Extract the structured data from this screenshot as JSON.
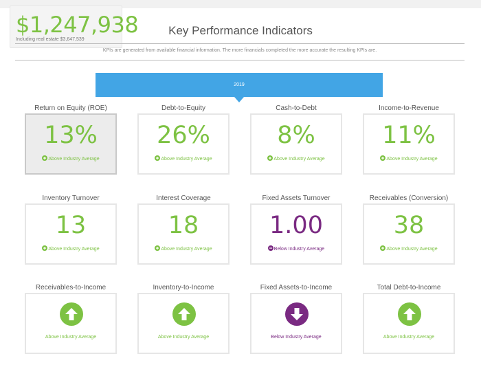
{
  "valuation": {
    "amount": "$1,247,938",
    "subtext": "Including real estate $3,647,539"
  },
  "header": {
    "title": "Key Performance Indicators",
    "subtitle": "KPIs are generated from available financial information. The more financials completed the more accurate the resulting KPIs are."
  },
  "year_tab": {
    "label": "2019"
  },
  "colors": {
    "above": "#7dc243",
    "below": "#7a2a82",
    "tab": "#42a5e5"
  },
  "kpis": [
    {
      "label": "Return on Equity (ROE)",
      "value": "13%",
      "status": "Above Industry Average",
      "direction": "up",
      "selected": true
    },
    {
      "label": "Debt-to-Equity",
      "value": "26%",
      "status": "Above Industry Average",
      "direction": "up"
    },
    {
      "label": "Cash-to-Debt",
      "value": "8%",
      "status": "Above Industry Average",
      "direction": "up"
    },
    {
      "label": "Income-to-Revenue",
      "value": "11%",
      "status": "Above Industry Average",
      "direction": "up"
    },
    {
      "label": "Inventory Turnover",
      "value": "13",
      "status": "Above Industry Average",
      "direction": "up"
    },
    {
      "label": "Interest Coverage",
      "value": "18",
      "status": "Above Industry Average",
      "direction": "up"
    },
    {
      "label": "Fixed Assets Turnover",
      "value": "1.00",
      "status": "Below Industry Average",
      "direction": "down"
    },
    {
      "label": "Receivables (Conversion)",
      "value": "38",
      "status": "Above Industry Average",
      "direction": "up"
    },
    {
      "label": "Receivables-to-Income",
      "status": "Above Industry Average",
      "direction": "up",
      "icon": "arrow-up-circle-icon"
    },
    {
      "label": "Inventory-to-Income",
      "status": "Above Industry Average",
      "direction": "up",
      "icon": "arrow-up-circle-icon"
    },
    {
      "label": "Fixed Assets-to-Income",
      "status": "Below Industry Average",
      "direction": "down",
      "icon": "arrow-down-circle-icon"
    },
    {
      "label": "Total Debt-to-Income",
      "status": "Above Industry Average",
      "direction": "up",
      "icon": "arrow-up-circle-icon"
    }
  ]
}
